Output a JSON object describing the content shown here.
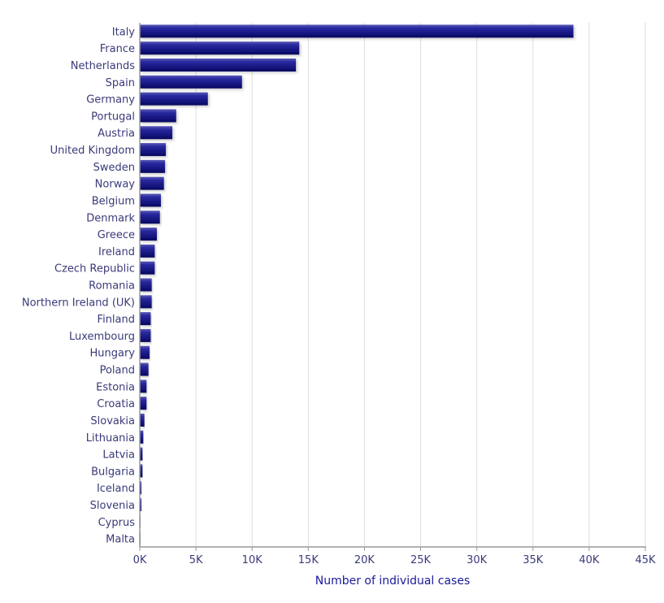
{
  "chart_data": {
    "type": "bar",
    "orientation": "horizontal",
    "title": "",
    "xlabel": "Number of individual cases",
    "ylabel": "",
    "xlim": [
      0,
      45000
    ],
    "xticks": [
      0,
      5000,
      10000,
      15000,
      20000,
      25000,
      30000,
      35000,
      40000,
      45000
    ],
    "xtick_labels": [
      "0K",
      "5K",
      "10K",
      "15K",
      "20K",
      "25K",
      "30K",
      "35K",
      "40K",
      "45K"
    ],
    "grid": "vertical",
    "legend": "none",
    "bar_color": "#1a1a8c",
    "categories": [
      "Italy",
      "France",
      "Netherlands",
      "Spain",
      "Germany",
      "Portugal",
      "Austria",
      "United Kingdom",
      "Sweden",
      "Norway",
      "Belgium",
      "Denmark",
      "Greece",
      "Ireland",
      "Czech Republic",
      "Romania",
      "Northern Ireland (UK)",
      "Finland",
      "Luxembourg",
      "Hungary",
      "Poland",
      "Estonia",
      "Croatia",
      "Slovakia",
      "Lithuania",
      "Latvia",
      "Bulgaria",
      "Iceland",
      "Slovenia",
      "Cyprus",
      "Malta"
    ],
    "values": [
      38600,
      14200,
      13900,
      9100,
      6060,
      3240,
      2900,
      2320,
      2250,
      2150,
      1880,
      1790,
      1520,
      1330,
      1330,
      1060,
      1060,
      970,
      970,
      870,
      770,
      600,
      600,
      410,
      310,
      240,
      240,
      140,
      140,
      30,
      10
    ]
  }
}
